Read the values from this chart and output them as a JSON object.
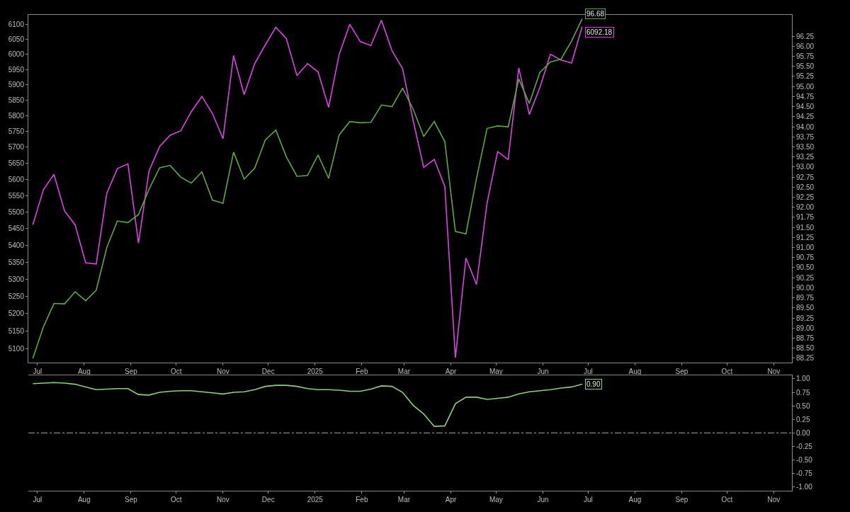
{
  "chart_data": [
    {
      "type": "line",
      "x": [
        "2024-06-28",
        "2024-07-05",
        "2024-07-12",
        "2024-07-19",
        "2024-07-26",
        "2024-08-02",
        "2024-08-09",
        "2024-08-16",
        "2024-08-23",
        "2024-08-30",
        "2024-09-06",
        "2024-09-13",
        "2024-09-20",
        "2024-09-27",
        "2024-10-04",
        "2024-10-11",
        "2024-10-18",
        "2024-10-25",
        "2024-11-01",
        "2024-11-08",
        "2024-11-15",
        "2024-11-22",
        "2024-11-29",
        "2024-12-06",
        "2024-12-13",
        "2024-12-20",
        "2024-12-27",
        "2025-01-03",
        "2025-01-10",
        "2025-01-17",
        "2025-01-24",
        "2025-01-31",
        "2025-02-07",
        "2025-02-14",
        "2025-02-21",
        "2025-02-28",
        "2025-03-07",
        "2025-03-14",
        "2025-03-21",
        "2025-03-28",
        "2025-04-04",
        "2025-04-11",
        "2025-04-18",
        "2025-04-25",
        "2025-05-02",
        "2025-05-09",
        "2025-05-16",
        "2025-05-23",
        "2025-05-30",
        "2025-06-06",
        "2025-06-13",
        "2025-06-20",
        "2025-06-27"
      ],
      "series": [
        {
          "color": "#e040e8",
          "values": [
            5461,
            5568,
            5615,
            5503,
            5461,
            5348,
            5344,
            5557,
            5633,
            5648,
            5406,
            5626,
            5702,
            5738,
            5752,
            5813,
            5862,
            5807,
            5727,
            5996,
            5868,
            5969,
            6031,
            6090,
            6052,
            5930,
            5969,
            5942,
            5827,
            6000,
            6100,
            6042,
            6029,
            6114,
            6012,
            5953,
            5785,
            5637,
            5662,
            5578,
            5075,
            5362,
            5284,
            5527,
            5686,
            5661,
            5955,
            5804,
            5891,
            6000,
            5981,
            5971,
            6092.18
          ],
          "value_labels": [
            null,
            null,
            null,
            null,
            null,
            null,
            null,
            null,
            null,
            null,
            null,
            null,
            null,
            null,
            null,
            null,
            null,
            null,
            null,
            null,
            null,
            null,
            null,
            null,
            null,
            null,
            null,
            null,
            null,
            null,
            null,
            null,
            null,
            null,
            null,
            null,
            null,
            null,
            null,
            null,
            null,
            null,
            null,
            null,
            null,
            null,
            null,
            null,
            null,
            null,
            null,
            null,
            "6092.18"
          ]
        },
        {
          "color": "#5fa83c",
          "axis": "y2",
          "values": [
            88.25,
            89.03,
            89.61,
            89.6,
            89.9,
            89.68,
            89.94,
            91.0,
            91.66,
            91.62,
            91.82,
            92.45,
            92.98,
            93.04,
            92.75,
            92.6,
            92.88,
            92.18,
            92.1,
            93.37,
            92.7,
            92.97,
            93.67,
            93.92,
            93.25,
            92.77,
            92.79,
            93.3,
            92.72,
            93.8,
            94.13,
            94.1,
            94.11,
            94.54,
            94.5,
            94.96,
            94.44,
            93.76,
            94.13,
            93.63,
            91.4,
            91.34,
            92.72,
            93.96,
            94.02,
            94.0,
            95.19,
            94.58,
            95.35,
            95.61,
            95.68,
            96.13,
            96.68
          ],
          "value_labels": [
            null,
            null,
            null,
            null,
            null,
            null,
            null,
            null,
            null,
            null,
            null,
            null,
            null,
            null,
            null,
            null,
            null,
            null,
            null,
            null,
            null,
            null,
            null,
            null,
            null,
            null,
            null,
            null,
            null,
            null,
            null,
            null,
            null,
            null,
            null,
            null,
            null,
            null,
            null,
            null,
            null,
            null,
            null,
            null,
            null,
            null,
            null,
            null,
            null,
            null,
            null,
            null,
            "96.68"
          ]
        }
      ],
      "log": true,
      "xlim": [
        "2024-06-25",
        "2025-11-13"
      ],
      "xticks": [
        {
          "value": "2024-07-01",
          "label": "Jul"
        },
        {
          "value": "2024-08-01",
          "label": "Aug"
        },
        {
          "value": "2024-09-01",
          "label": "Sep"
        },
        {
          "value": "2024-10-01",
          "label": "Oct"
        },
        {
          "value": "2024-11-01",
          "label": "Nov"
        },
        {
          "value": "2024-12-01",
          "label": "Dec"
        },
        {
          "value": "2025-01-01",
          "label": "2025"
        },
        {
          "value": "2025-02-01",
          "label": "Feb"
        },
        {
          "value": "2025-03-01",
          "label": "Mar"
        },
        {
          "value": "2025-04-01",
          "label": "Apr"
        },
        {
          "value": "2025-05-01",
          "label": "May"
        },
        {
          "value": "2025-06-01",
          "label": "Jun"
        },
        {
          "value": "2025-07-01",
          "label": "Jul"
        },
        {
          "value": "2025-08-01",
          "label": "Aug"
        },
        {
          "value": "2025-09-01",
          "label": "Sep"
        },
        {
          "value": "2025-10-01",
          "label": "Oct"
        },
        {
          "value": "2025-11-01",
          "label": "Nov"
        }
      ],
      "ylim": [
        5062,
        6132
      ],
      "yticks": [
        5100,
        5150,
        5200,
        5250,
        5300,
        5350,
        5400,
        5450,
        5500,
        5550,
        5600,
        5650,
        5700,
        5750,
        5800,
        5850,
        5900,
        5950,
        6000,
        6050,
        6100
      ],
      "y2lim": [
        88.15,
        96.78
      ],
      "y2ticks": [
        88.25,
        {
          "value": 88.5,
          "label": "88.50"
        },
        88.75,
        {
          "value": 89,
          "label": "89.00"
        },
        89.25,
        {
          "value": 89.5,
          "label": "89.50"
        },
        89.75,
        {
          "value": 90,
          "label": "90.00"
        },
        90.25,
        {
          "value": 90.5,
          "label": "90.50"
        },
        90.75,
        {
          "value": 91,
          "label": "91.00"
        },
        91.25,
        {
          "value": 91.5,
          "label": "91.50"
        },
        91.75,
        {
          "value": 92,
          "label": "92.00"
        },
        92.25,
        {
          "value": 92.5,
          "label": "92.50"
        },
        92.75,
        {
          "value": 93,
          "label": "93.00"
        },
        93.25,
        {
          "value": 93.5,
          "label": "93.50"
        },
        93.75,
        {
          "value": 94,
          "label": "94.00"
        },
        94.25,
        {
          "value": 94.5,
          "label": "94.50"
        },
        94.75,
        {
          "value": 95,
          "label": "95.00"
        },
        95.25,
        {
          "value": 95.5,
          "label": "95.50"
        },
        95.75,
        {
          "value": 96,
          "label": "96.00"
        },
        96.25
      ]
    },
    {
      "type": "line",
      "x": [
        "2024-06-28",
        "2024-07-05",
        "2024-07-12",
        "2024-07-19",
        "2024-07-26",
        "2024-08-02",
        "2024-08-09",
        "2024-08-16",
        "2024-08-23",
        "2024-08-30",
        "2024-09-06",
        "2024-09-13",
        "2024-09-20",
        "2024-09-27",
        "2024-10-04",
        "2024-10-11",
        "2024-10-18",
        "2024-10-25",
        "2024-11-01",
        "2024-11-08",
        "2024-11-15",
        "2024-11-22",
        "2024-11-29",
        "2024-12-06",
        "2024-12-13",
        "2024-12-20",
        "2024-12-27",
        "2025-01-03",
        "2025-01-10",
        "2025-01-17",
        "2025-01-24",
        "2025-01-31",
        "2025-02-07",
        "2025-02-14",
        "2025-02-21",
        "2025-02-28",
        "2025-03-07",
        "2025-03-14",
        "2025-03-21",
        "2025-03-28",
        "2025-04-04",
        "2025-04-11",
        "2025-04-18",
        "2025-04-25",
        "2025-05-02",
        "2025-05-09",
        "2025-05-16",
        "2025-05-23",
        "2025-05-30",
        "2025-06-06",
        "2025-06-13",
        "2025-06-20",
        "2025-06-27"
      ],
      "series": [
        {
          "color": "#8fd07a",
          "axis": "y2",
          "values": [
            0.91,
            0.92,
            0.93,
            0.92,
            0.9,
            0.85,
            0.8,
            0.81,
            0.82,
            0.82,
            0.71,
            0.7,
            0.75,
            0.77,
            0.78,
            0.78,
            0.76,
            0.74,
            0.72,
            0.75,
            0.76,
            0.8,
            0.86,
            0.88,
            0.88,
            0.86,
            0.82,
            0.8,
            0.8,
            0.79,
            0.77,
            0.77,
            0.81,
            0.87,
            0.86,
            0.75,
            0.51,
            0.35,
            0.12,
            0.13,
            0.54,
            0.66,
            0.66,
            0.62,
            0.64,
            0.66,
            0.72,
            0.76,
            0.78,
            0.8,
            0.83,
            0.85,
            0.9
          ],
          "value_labels": [
            null,
            null,
            null,
            null,
            null,
            null,
            null,
            null,
            null,
            null,
            null,
            null,
            null,
            null,
            null,
            null,
            null,
            null,
            null,
            null,
            null,
            null,
            null,
            null,
            null,
            null,
            null,
            null,
            null,
            null,
            null,
            null,
            null,
            null,
            null,
            null,
            null,
            null,
            null,
            null,
            null,
            null,
            null,
            null,
            null,
            null,
            null,
            null,
            null,
            null,
            null,
            null,
            "0.90"
          ]
        }
      ],
      "xlim": [
        "2024-06-25",
        "2025-11-13"
      ],
      "xticks": [
        {
          "value": "2024-07-01",
          "label": "Jul"
        },
        {
          "value": "2024-08-01",
          "label": "Aug"
        },
        {
          "value": "2024-09-01",
          "label": "Sep"
        },
        {
          "value": "2024-10-01",
          "label": "Oct"
        },
        {
          "value": "2024-11-01",
          "label": "Nov"
        },
        {
          "value": "2024-12-01",
          "label": "Dec"
        },
        {
          "value": "2025-01-01",
          "label": "2025"
        },
        {
          "value": "2025-02-01",
          "label": "Feb"
        },
        {
          "value": "2025-03-01",
          "label": "Mar"
        },
        {
          "value": "2025-04-01",
          "label": "Apr"
        },
        {
          "value": "2025-05-01",
          "label": "May"
        },
        {
          "value": "2025-06-01",
          "label": "Jun"
        },
        {
          "value": "2025-07-01",
          "label": "Jul"
        },
        {
          "value": "2025-08-01",
          "label": "Aug"
        },
        {
          "value": "2025-09-01",
          "label": "Sep"
        },
        {
          "value": "2025-10-01",
          "label": "Oct"
        },
        {
          "value": "2025-11-01",
          "label": "Nov"
        }
      ],
      "y2lim": [
        -1.07,
        1.06
      ],
      "y2ticks": [
        {
          "value": -1,
          "label": "-1.00"
        },
        -0.75,
        {
          "value": -0.5,
          "label": "-0.50"
        },
        -0.25,
        {
          "value": 0,
          "label": "0.00"
        },
        0.25,
        {
          "value": 0.5,
          "label": "0.50"
        },
        0.75,
        {
          "value": 1,
          "label": "1.00"
        }
      ],
      "ref_lines": [
        {
          "axis": "y2",
          "value": 0,
          "color": "#a8a8a8",
          "line_style": "dashdot"
        }
      ]
    }
  ]
}
